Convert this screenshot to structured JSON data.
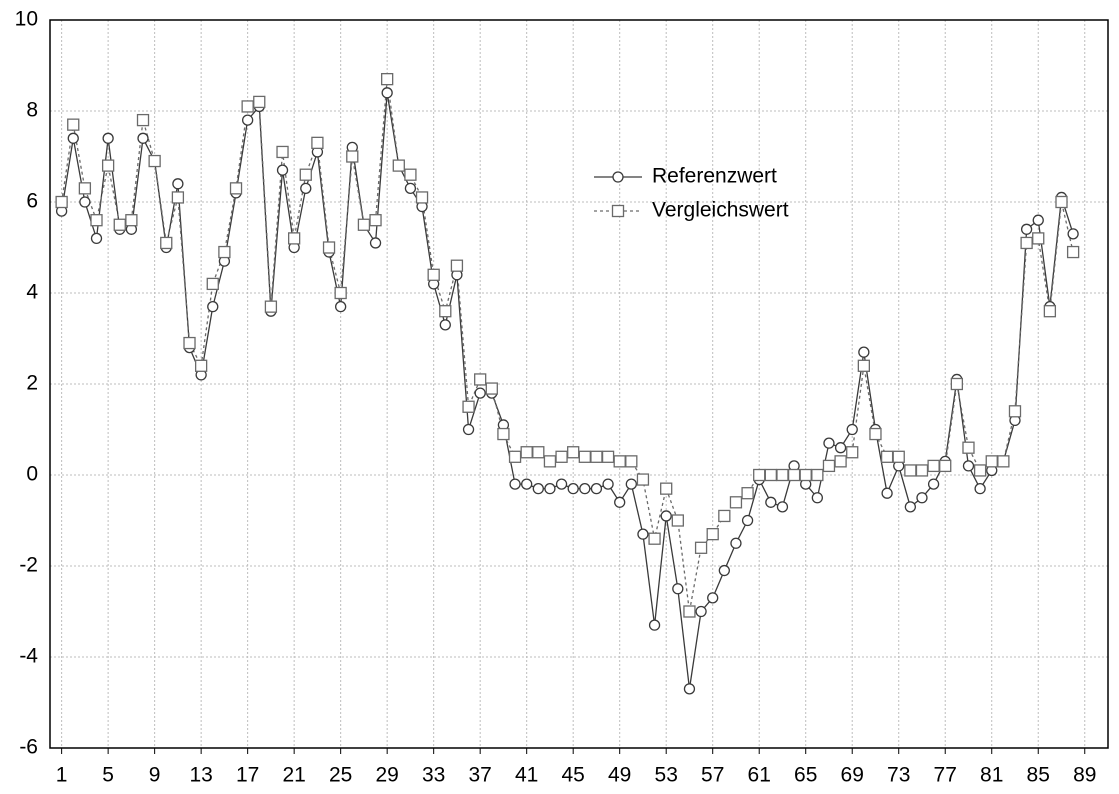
{
  "chart_data": {
    "type": "line",
    "x": [
      1,
      2,
      3,
      4,
      5,
      6,
      7,
      8,
      9,
      10,
      11,
      12,
      13,
      14,
      15,
      16,
      17,
      18,
      19,
      20,
      21,
      22,
      23,
      24,
      25,
      26,
      27,
      28,
      29,
      30,
      31,
      32,
      33,
      34,
      35,
      36,
      37,
      38,
      39,
      40,
      41,
      42,
      43,
      44,
      45,
      46,
      47,
      48,
      49,
      50,
      51,
      52,
      53,
      54,
      55,
      56,
      57,
      58,
      59,
      60,
      61,
      62,
      63,
      64,
      65,
      66,
      67,
      68,
      69,
      70,
      71,
      72,
      73,
      74,
      75,
      76,
      77,
      78,
      79,
      80,
      81,
      82,
      83,
      84,
      85,
      86,
      87,
      88
    ],
    "series": [
      {
        "name": "Referenzwert",
        "color": "#3a3a3a",
        "dashed": false,
        "marker": "circle",
        "values": [
          5.8,
          7.4,
          6.0,
          5.2,
          7.4,
          5.4,
          5.4,
          7.4,
          6.9,
          5.0,
          6.4,
          2.8,
          2.2,
          3.7,
          4.7,
          6.2,
          7.8,
          8.1,
          3.6,
          6.7,
          5.0,
          6.3,
          7.1,
          4.9,
          3.7,
          7.2,
          5.5,
          5.1,
          8.4,
          6.8,
          6.3,
          5.9,
          4.2,
          3.3,
          4.4,
          1.0,
          1.8,
          1.8,
          1.1,
          -0.2,
          -0.2,
          -0.3,
          -0.3,
          -0.2,
          -0.3,
          -0.3,
          -0.3,
          -0.2,
          -0.6,
          -0.2,
          -1.3,
          -3.3,
          -0.9,
          -2.5,
          -4.7,
          -3.0,
          -2.7,
          -2.1,
          -1.5,
          -1.0,
          -0.1,
          -0.6,
          -0.7,
          0.2,
          -0.2,
          -0.5,
          0.7,
          0.6,
          1.0,
          2.7,
          1.0,
          -0.4,
          0.2,
          -0.7,
          -0.5,
          -0.2,
          0.3,
          2.1,
          0.2,
          -0.3,
          0.1,
          0.3,
          1.2,
          5.4,
          5.6,
          3.7,
          6.1,
          5.3
        ]
      },
      {
        "name": "Vergleichswert",
        "color": "#6a6a6a",
        "dashed": true,
        "marker": "square",
        "values": [
          6.0,
          7.7,
          6.3,
          5.6,
          6.8,
          5.5,
          5.6,
          7.8,
          6.9,
          5.1,
          6.1,
          2.9,
          2.4,
          4.2,
          4.9,
          6.3,
          8.1,
          8.2,
          3.7,
          7.1,
          5.2,
          6.6,
          7.3,
          5.0,
          4.0,
          7.0,
          5.5,
          5.6,
          8.7,
          6.8,
          6.6,
          6.1,
          4.4,
          3.6,
          4.6,
          1.5,
          2.1,
          1.9,
          0.9,
          0.4,
          0.5,
          0.5,
          0.3,
          0.4,
          0.5,
          0.4,
          0.4,
          0.4,
          0.3,
          0.3,
          -0.1,
          -1.4,
          -0.3,
          -1.0,
          -3.0,
          -1.6,
          -1.3,
          -0.9,
          -0.6,
          -0.4,
          0.0,
          0.0,
          0.0,
          0.0,
          0.0,
          0.0,
          0.2,
          0.3,
          0.5,
          2.4,
          0.9,
          0.4,
          0.4,
          0.1,
          0.1,
          0.2,
          0.2,
          2.0,
          0.6,
          0.1,
          0.3,
          0.3,
          1.4,
          5.1,
          5.2,
          3.6,
          6.0,
          4.9
        ]
      }
    ],
    "xlim": [
      0,
      91
    ],
    "xticks": [
      1,
      5,
      9,
      13,
      17,
      21,
      25,
      29,
      33,
      37,
      41,
      45,
      49,
      53,
      57,
      61,
      65,
      69,
      73,
      77,
      81,
      85,
      89
    ],
    "ylim": [
      -6,
      10
    ],
    "yticks": [
      -6,
      -4,
      -2,
      0,
      2,
      4,
      6,
      8,
      10
    ],
    "grid": true,
    "legend": "upper center"
  }
}
